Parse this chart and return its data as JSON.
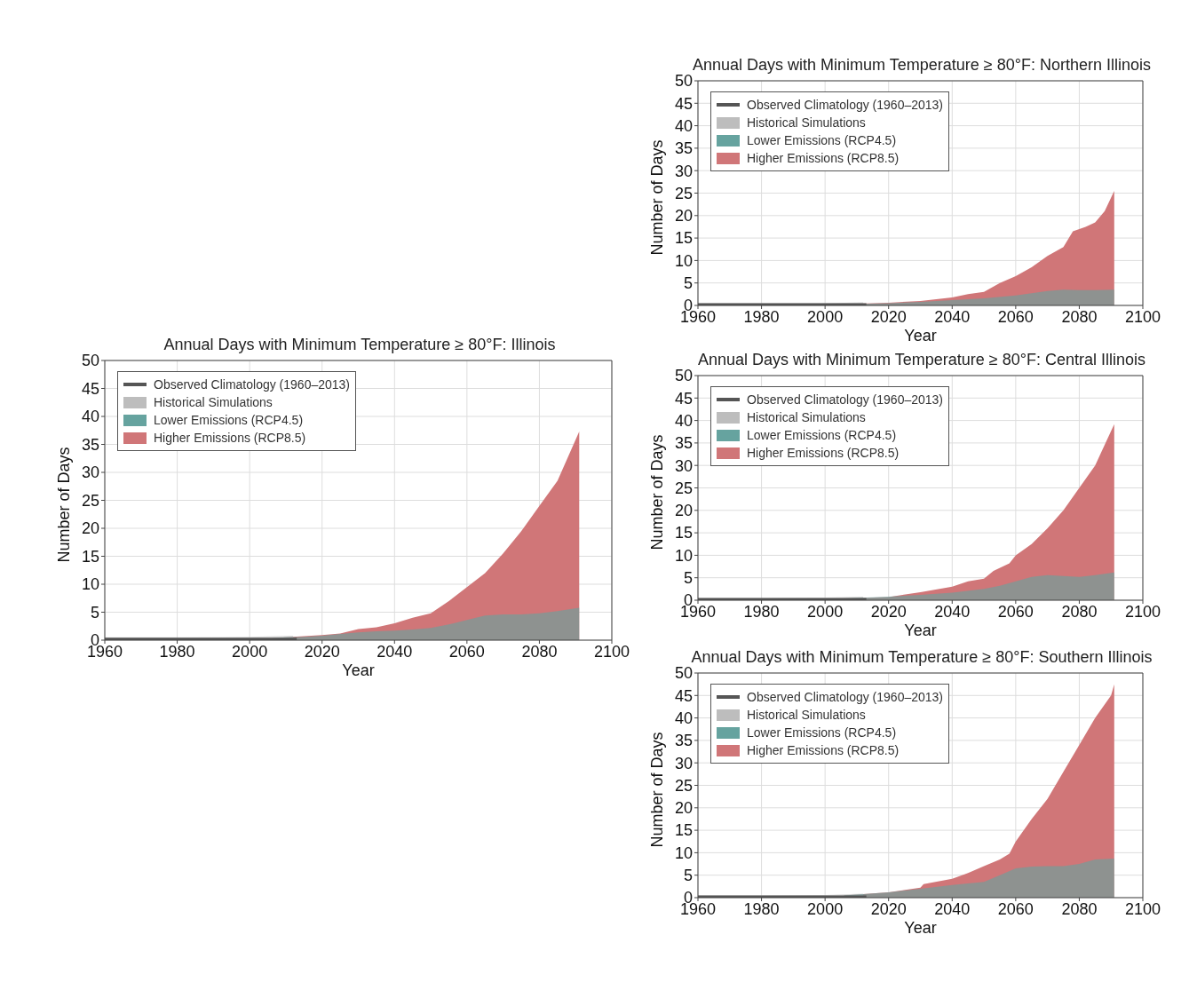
{
  "chart_data": [
    {
      "type": "area",
      "title": "Annual Days with Minimum Temperature ≥ 80°F: Illinois",
      "xlabel": "Year",
      "ylabel": "Number of Days",
      "xlim": [
        1960,
        2100
      ],
      "xticks": [
        1960,
        1980,
        2000,
        2020,
        2040,
        2060,
        2080,
        2100
      ],
      "ylim": [
        0,
        50
      ],
      "yticks": [
        0,
        5,
        10,
        15,
        20,
        25,
        30,
        35,
        40,
        45,
        50
      ],
      "grid": true,
      "legend": "top left",
      "series": [
        {
          "name": "Historical Simulations",
          "color": "#bdbdbd",
          "x": [
            1960,
            1980,
            2000,
            2012
          ],
          "values": [
            0.5,
            0.5,
            0.6,
            0.8
          ]
        },
        {
          "name": "Lower Emissions (RCP4.5)",
          "color": "#66a39f",
          "x": [
            2006,
            2010,
            2015,
            2020,
            2025,
            2030,
            2035,
            2040,
            2045,
            2050,
            2055,
            2060,
            2065,
            2070,
            2075,
            2080,
            2085,
            2091
          ],
          "values": [
            0.3,
            0.5,
            0.6,
            0.8,
            1.1,
            1.4,
            1.6,
            1.7,
            1.9,
            2.2,
            2.8,
            3.6,
            4.4,
            4.6,
            4.6,
            4.8,
            5.2,
            5.8
          ]
        },
        {
          "name": "Higher Emissions (RCP8.5)",
          "color": "#d07678",
          "x": [
            2006,
            2010,
            2015,
            2020,
            2025,
            2030,
            2035,
            2040,
            2045,
            2050,
            2055,
            2060,
            2065,
            2070,
            2075,
            2080,
            2085,
            2091
          ],
          "values": [
            0.3,
            0.5,
            0.7,
            0.9,
            1.2,
            2.0,
            2.3,
            3.0,
            4.0,
            4.8,
            7.0,
            9.5,
            12,
            15.5,
            19.5,
            24,
            28.5,
            37.3
          ]
        },
        {
          "name": "Observed Climatology (1960–2013)",
          "type": "line",
          "color": "#555555",
          "x": [
            1960,
            2013
          ],
          "values": [
            0.2,
            0.2
          ]
        }
      ]
    },
    {
      "type": "area",
      "title": "Annual Days with Minimum Temperature ≥ 80°F: Northern Illinois",
      "xlabel": "Year",
      "ylabel": "Number of Days",
      "xlim": [
        1960,
        2100
      ],
      "xticks": [
        1960,
        1980,
        2000,
        2020,
        2040,
        2060,
        2080,
        2100
      ],
      "ylim": [
        0,
        50
      ],
      "yticks": [
        0,
        5,
        10,
        15,
        20,
        25,
        30,
        35,
        40,
        45,
        50
      ],
      "grid": true,
      "legend": "top left",
      "series": [
        {
          "name": "Historical Simulations",
          "color": "#bdbdbd",
          "x": [
            1960,
            1980,
            2000,
            2012
          ],
          "values": [
            0.5,
            0.5,
            0.5,
            0.7
          ]
        },
        {
          "name": "Lower Emissions (RCP4.5)",
          "color": "#66a39f",
          "x": [
            2006,
            2020,
            2030,
            2040,
            2050,
            2060,
            2065,
            2070,
            2075,
            2080,
            2085,
            2091
          ],
          "values": [
            0.3,
            0.5,
            0.8,
            1.2,
            1.6,
            2.2,
            2.7,
            3.2,
            3.5,
            3.4,
            3.4,
            3.5
          ]
        },
        {
          "name": "Higher Emissions (RCP8.5)",
          "color": "#d07678",
          "x": [
            2006,
            2020,
            2030,
            2040,
            2045,
            2050,
            2055,
            2060,
            2065,
            2070,
            2075,
            2078,
            2082,
            2085,
            2088,
            2091
          ],
          "values": [
            0.3,
            0.6,
            1.0,
            1.8,
            2.5,
            3.0,
            5.0,
            6.5,
            8.5,
            11,
            13,
            16.5,
            17.5,
            18.5,
            21,
            25.5
          ]
        },
        {
          "name": "Observed Climatology (1960–2013)",
          "type": "line",
          "color": "#555555",
          "x": [
            1960,
            2013
          ],
          "values": [
            0.2,
            0.2
          ]
        }
      ]
    },
    {
      "type": "area",
      "title": "Annual Days with Minimum Temperature ≥ 80°F: Central Illinois",
      "xlabel": "Year",
      "ylabel": "Number of Days",
      "xlim": [
        1960,
        2100
      ],
      "xticks": [
        1960,
        1980,
        2000,
        2020,
        2040,
        2060,
        2080,
        2100
      ],
      "ylim": [
        0,
        50
      ],
      "yticks": [
        0,
        5,
        10,
        15,
        20,
        25,
        30,
        35,
        40,
        45,
        50
      ],
      "grid": true,
      "legend": "top left",
      "series": [
        {
          "name": "Historical Simulations",
          "color": "#bdbdbd",
          "x": [
            1960,
            1980,
            2000,
            2012
          ],
          "values": [
            0.5,
            0.5,
            0.6,
            0.8
          ]
        },
        {
          "name": "Lower Emissions (RCP4.5)",
          "color": "#66a39f",
          "x": [
            2006,
            2020,
            2030,
            2040,
            2050,
            2055,
            2060,
            2065,
            2070,
            2075,
            2080,
            2085,
            2091
          ],
          "values": [
            0.4,
            0.8,
            1.2,
            1.7,
            2.5,
            3.2,
            4.2,
            5.2,
            5.6,
            5.4,
            5.2,
            5.6,
            6.2
          ]
        },
        {
          "name": "Higher Emissions (RCP8.5)",
          "color": "#d07678",
          "x": [
            2006,
            2020,
            2030,
            2040,
            2045,
            2050,
            2053,
            2058,
            2060,
            2065,
            2070,
            2075,
            2080,
            2085,
            2091
          ],
          "values": [
            0.4,
            0.7,
            1.8,
            3.0,
            4.2,
            4.8,
            6.5,
            8.2,
            10,
            12.5,
            16,
            20,
            25,
            30,
            39.2
          ]
        },
        {
          "name": "Observed Climatology (1960–2013)",
          "type": "line",
          "color": "#555555",
          "x": [
            1960,
            2013
          ],
          "values": [
            0.2,
            0.2
          ]
        }
      ]
    },
    {
      "type": "area",
      "title": "Annual Days with Minimum Temperature ≥ 80°F: Southern Illinois",
      "xlabel": "Year",
      "ylabel": "Number of Days",
      "xlim": [
        1960,
        2100
      ],
      "xticks": [
        1960,
        1980,
        2000,
        2020,
        2040,
        2060,
        2080,
        2100
      ],
      "ylim": [
        0,
        50
      ],
      "yticks": [
        0,
        5,
        10,
        15,
        20,
        25,
        30,
        35,
        40,
        45,
        50
      ],
      "grid": true,
      "legend": "top left",
      "series": [
        {
          "name": "Historical Simulations",
          "color": "#bdbdbd",
          "x": [
            1960,
            1980,
            2000,
            2012
          ],
          "values": [
            0.5,
            0.5,
            0.6,
            0.9
          ]
        },
        {
          "name": "Lower Emissions (RCP4.5)",
          "color": "#66a39f",
          "x": [
            2006,
            2020,
            2030,
            2040,
            2050,
            2055,
            2060,
            2065,
            2070,
            2075,
            2080,
            2085,
            2091
          ],
          "values": [
            0.5,
            1.2,
            2.0,
            2.8,
            3.5,
            5.0,
            6.5,
            6.9,
            7.0,
            7.0,
            7.5,
            8.5,
            8.7
          ]
        },
        {
          "name": "Higher Emissions (RCP8.5)",
          "color": "#d07678",
          "x": [
            2006,
            2020,
            2030,
            2031,
            2040,
            2045,
            2050,
            2055,
            2058,
            2060,
            2065,
            2070,
            2075,
            2080,
            2085,
            2090,
            2091
          ],
          "values": [
            0.5,
            1.2,
            2.2,
            3.0,
            4.2,
            5.5,
            7.0,
            8.5,
            9.8,
            12.5,
            17.5,
            22,
            28,
            34,
            40,
            45,
            47.5
          ]
        },
        {
          "name": "Observed Climatology (1960–2013)",
          "type": "line",
          "color": "#555555",
          "x": [
            1960,
            2013
          ],
          "values": [
            0.2,
            0.2
          ]
        }
      ]
    }
  ]
}
